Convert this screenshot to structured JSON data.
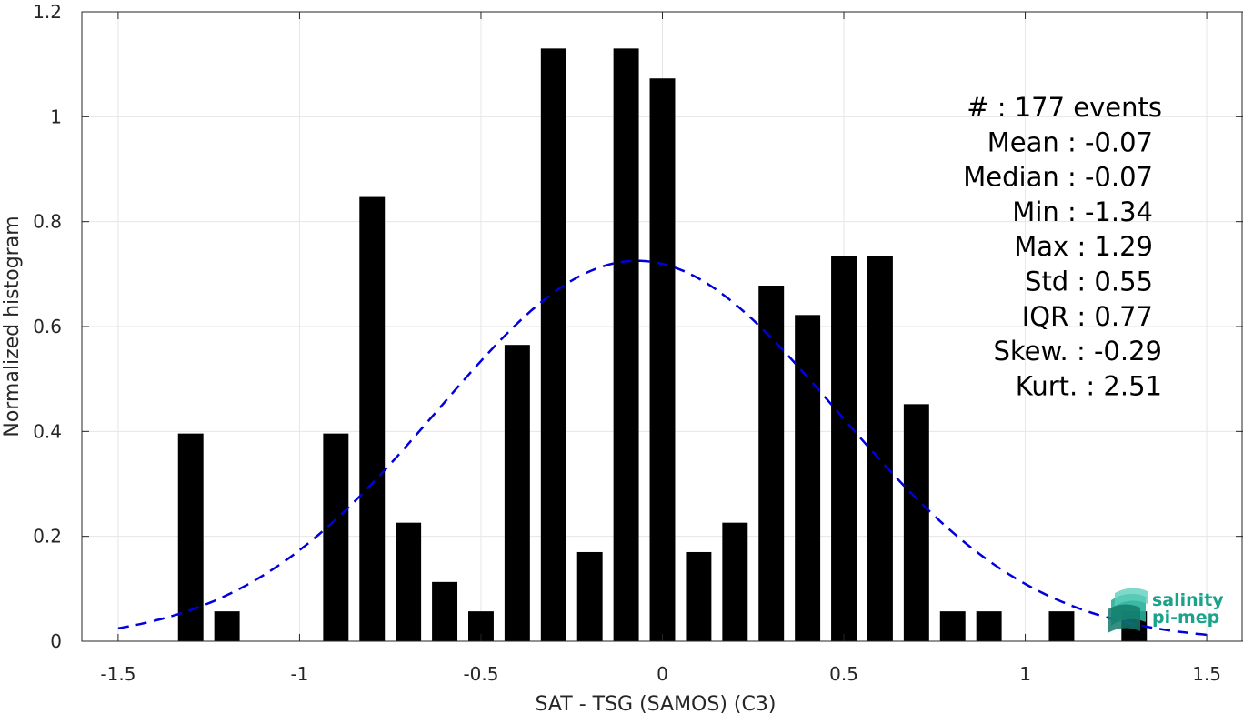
{
  "chart_data": {
    "type": "bar",
    "xlabel": "SAT - TSG (SAMOS) (C3)",
    "ylabel": "Normalized histogram",
    "xlim": [
      -1.6,
      1.6
    ],
    "ylim": [
      0,
      1.2
    ],
    "xticks": [
      "-1.5",
      "-1",
      "-0.5",
      "0",
      "0.5",
      "1",
      "1.5"
    ],
    "yticks": [
      "0",
      "0.2",
      "0.4",
      "0.6",
      "0.8",
      "1",
      "1.2"
    ],
    "grid": true,
    "bar_color": "#000000",
    "bins": [
      {
        "x": -1.3,
        "y": 0.396
      },
      {
        "x": -1.2,
        "y": 0.057
      },
      {
        "x": -0.9,
        "y": 0.396
      },
      {
        "x": -0.8,
        "y": 0.847
      },
      {
        "x": -0.7,
        "y": 0.226
      },
      {
        "x": -0.6,
        "y": 0.113
      },
      {
        "x": -0.5,
        "y": 0.057
      },
      {
        "x": -0.4,
        "y": 0.565
      },
      {
        "x": -0.3,
        "y": 1.13
      },
      {
        "x": -0.2,
        "y": 0.17
      },
      {
        "x": -0.1,
        "y": 1.13
      },
      {
        "x": 0.0,
        "y": 1.073
      },
      {
        "x": 0.1,
        "y": 0.17
      },
      {
        "x": 0.2,
        "y": 0.226
      },
      {
        "x": 0.3,
        "y": 0.678
      },
      {
        "x": 0.4,
        "y": 0.622
      },
      {
        "x": 0.5,
        "y": 0.734
      },
      {
        "x": 0.6,
        "y": 0.734
      },
      {
        "x": 0.7,
        "y": 0.452
      },
      {
        "x": 0.8,
        "y": 0.057
      },
      {
        "x": 0.9,
        "y": 0.057
      },
      {
        "x": 1.1,
        "y": 0.057
      },
      {
        "x": 1.3,
        "y": 0.057
      }
    ],
    "fit_curve": {
      "style": "dashed",
      "color": "#0000dd",
      "mean": -0.07,
      "std": 0.55,
      "x_range": [
        -1.5,
        1.5
      ]
    },
    "stats": [
      "#  : 177 events",
      "Mean : -0.07",
      "Median : -0.07",
      "Min : -1.34",
      "Max : 1.29",
      "Std : 0.55",
      "IQR : 0.77",
      "Skew. : -0.29",
      "Kurt. : 2.51"
    ]
  },
  "logo": {
    "line1": "salinity",
    "line2": "pi-mep",
    "color": "#1aa38a"
  }
}
